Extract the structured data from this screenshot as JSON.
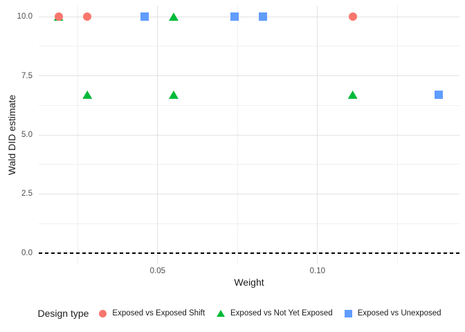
{
  "chart_data": {
    "type": "scatter",
    "title": "",
    "xlabel": "Weight",
    "ylabel": "Wald DID estimate",
    "xlim": [
      0.0128,
      0.1444
    ],
    "ylim": [
      -0.47,
      10.47
    ],
    "grid": true,
    "x_ticks": {
      "values": [
        0.05,
        0.1
      ],
      "labels": [
        "0.05",
        "0.10"
      ],
      "minor": [
        0.025,
        0.075,
        0.125
      ]
    },
    "y_ticks": {
      "values": [
        0,
        2.5,
        5,
        7.5,
        10
      ],
      "labels": [
        "0.0",
        "2.5",
        "5.0",
        "7.5",
        "10.0"
      ],
      "minor": [
        1.25,
        3.75,
        6.25,
        8.75
      ]
    },
    "reference_line": {
      "y": 0,
      "style": "dashed",
      "color": "#000000"
    },
    "legend": {
      "title": "Design type",
      "position": "bottom"
    },
    "series": [
      {
        "name": "Exposed vs Exposed Shift",
        "shape": "circle",
        "color": "#F8766D",
        "z": 3,
        "points": [
          {
            "x": 0.019,
            "y": 10.0
          },
          {
            "x": 0.028,
            "y": 10.0
          },
          {
            "x": 0.111,
            "y": 10.0
          }
        ]
      },
      {
        "name": "Exposed vs Not Yet Exposed",
        "shape": "triangle",
        "color": "#00BA38",
        "z": 2,
        "points": [
          {
            "x": 0.019,
            "y": 10.0
          },
          {
            "x": 0.055,
            "y": 10.0
          },
          {
            "x": 0.028,
            "y": 6.7
          },
          {
            "x": 0.055,
            "y": 6.7
          },
          {
            "x": 0.111,
            "y": 6.7
          }
        ]
      },
      {
        "name": "Exposed vs Unexposed",
        "shape": "square",
        "color": "#619CFF",
        "z": 2,
        "points": [
          {
            "x": 0.046,
            "y": 10.0
          },
          {
            "x": 0.074,
            "y": 10.0
          },
          {
            "x": 0.083,
            "y": 10.0
          },
          {
            "x": 0.138,
            "y": 6.7
          }
        ]
      }
    ]
  }
}
